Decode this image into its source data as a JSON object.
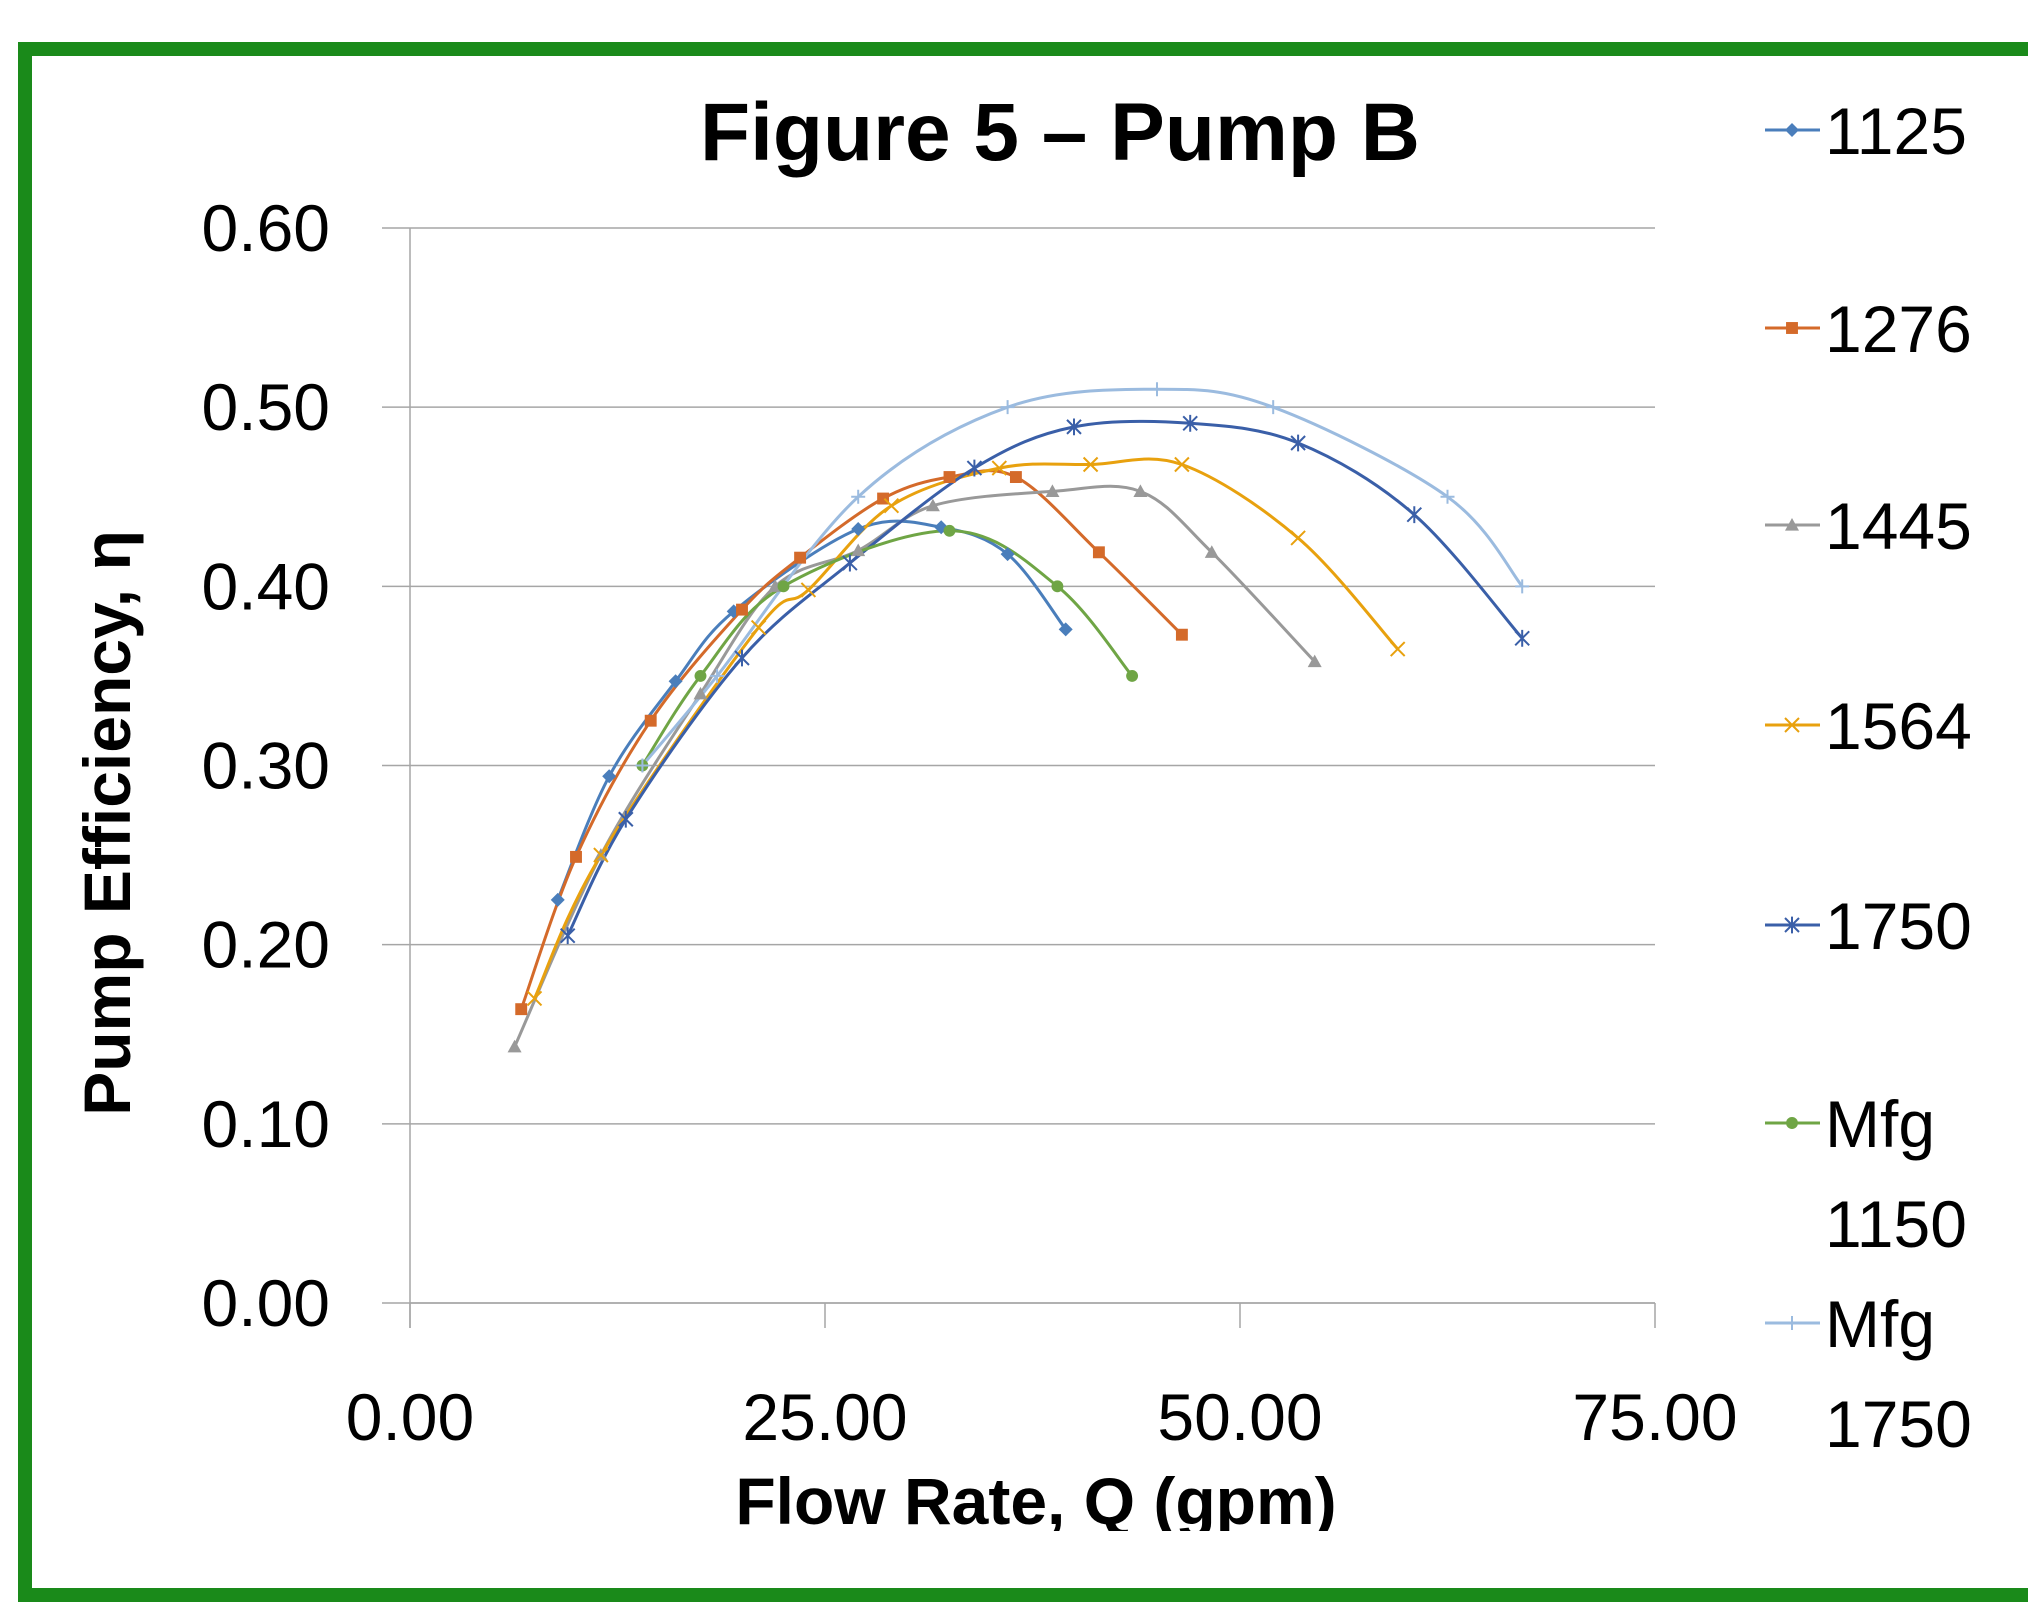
{
  "chart_data": {
    "type": "line",
    "title": "Figure 5 – Pump B",
    "xlabel": "Flow Rate, Q (gpm)",
    "ylabel": "Pump Efficiency, η",
    "xlim": [
      0,
      75
    ],
    "ylim": [
      0,
      0.6
    ],
    "x_ticks": [
      "0.00",
      "25.00",
      "50.00",
      "75.00"
    ],
    "y_ticks": [
      "0.00",
      "0.10",
      "0.20",
      "0.30",
      "0.40",
      "0.50",
      "0.60"
    ],
    "grid": "horizontal",
    "legend_position": "right",
    "series": [
      {
        "name": "1125",
        "color": "#4a7ebb",
        "marker": "diamond",
        "x": [
          8.9,
          12.0,
          16.0,
          19.5,
          27.0,
          32.0,
          36.0,
          39.5
        ],
        "y": [
          0.225,
          0.294,
          0.347,
          0.386,
          0.432,
          0.433,
          0.418,
          0.376
        ]
      },
      {
        "name": "1276",
        "color": "#d46a2a",
        "marker": "square",
        "x": [
          6.7,
          10.0,
          14.5,
          20.0,
          23.5,
          28.5,
          32.5,
          36.5,
          41.5,
          46.5
        ],
        "y": [
          0.164,
          0.249,
          0.325,
          0.387,
          0.416,
          0.449,
          0.461,
          0.461,
          0.419,
          0.373
        ]
      },
      {
        "name": "1445",
        "color": "#999999",
        "marker": "triangle",
        "x": [
          6.3,
          11.5,
          17.5,
          22.0,
          27.0,
          31.5,
          38.7,
          44.0,
          48.3,
          54.5
        ],
        "y": [
          0.143,
          0.25,
          0.34,
          0.4,
          0.42,
          0.445,
          0.453,
          0.453,
          0.419,
          0.358
        ]
      },
      {
        "name": "1564",
        "color": "#e8a10e",
        "marker": "x",
        "x": [
          7.5,
          11.5,
          21.0,
          24.0,
          29.0,
          35.5,
          41.0,
          46.5,
          53.5,
          59.5
        ],
        "y": [
          0.17,
          0.25,
          0.377,
          0.398,
          0.445,
          0.466,
          0.468,
          0.468,
          0.427,
          0.365
        ]
      },
      {
        "name": "1750",
        "color": "#3a5fa8",
        "marker": "star",
        "x": [
          9.5,
          13.0,
          20.0,
          26.5,
          34.0,
          40.0,
          47.0,
          53.5,
          60.5,
          67.0
        ],
        "y": [
          0.205,
          0.27,
          0.36,
          0.413,
          0.466,
          0.489,
          0.491,
          0.48,
          0.44,
          0.371
        ]
      },
      {
        "name": "Mfg 1150",
        "color": "#6fa545",
        "marker": "circle",
        "x": [
          14.0,
          17.5,
          22.5,
          32.5,
          39.0,
          43.5
        ],
        "y": [
          0.3,
          0.35,
          0.4,
          0.431,
          0.4,
          0.35
        ]
      },
      {
        "name": "Mfg 1750",
        "color": "#9bbbdf",
        "marker": "plus",
        "x": [
          14.0,
          18.5,
          27.0,
          36.0,
          45.0,
          52.0,
          62.5,
          67.0
        ],
        "y": [
          0.3,
          0.35,
          0.45,
          0.5,
          0.51,
          0.5,
          0.45,
          0.4
        ]
      }
    ]
  }
}
